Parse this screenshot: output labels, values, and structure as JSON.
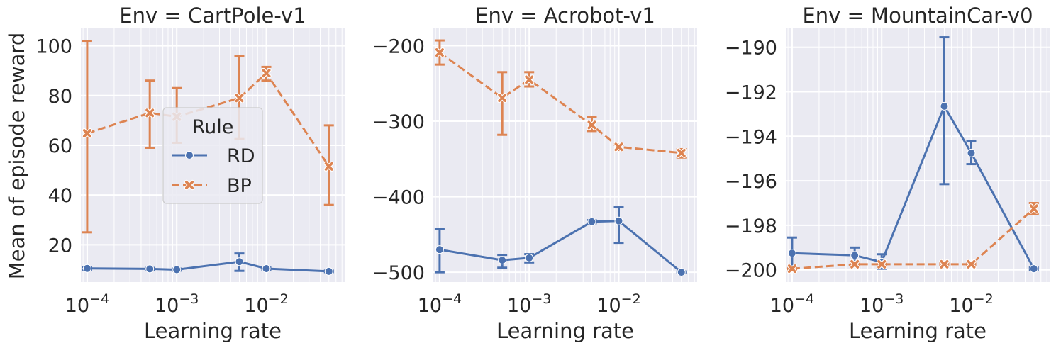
{
  "ylabel_shared": "Mean of episode reward",
  "legend": {
    "title": "Rule",
    "entries": [
      "RD",
      "BP"
    ]
  },
  "colors": {
    "RD": "#4c72b0",
    "BP": "#dd8452",
    "panel_bg": "#eaeaf2",
    "grid": "#ffffff",
    "text": "#262626"
  },
  "chart_data": [
    {
      "type": "line",
      "title": "Env = CartPole-v1",
      "xlabel": "Learning rate",
      "ylabel": "Mean of episode reward",
      "xscale": "log",
      "xlim": [
        8.5e-05,
        0.075
      ],
      "ylim": [
        5,
        107
      ],
      "x_ticks": [
        0.0001,
        0.001,
        0.01
      ],
      "x_tick_labels": [
        "10^-4",
        "10^-3",
        "10^-2"
      ],
      "y_ticks": [
        20,
        40,
        60,
        80,
        100
      ],
      "y_tick_labels": [
        "20",
        "40",
        "60",
        "80",
        "100"
      ],
      "grid": true,
      "legend_position": "center",
      "series": [
        {
          "name": "RD",
          "marker": "circle",
          "linestyle": "solid",
          "x": [
            0.0001,
            0.0005,
            0.001,
            0.005,
            0.01,
            0.05
          ],
          "y": [
            10.5,
            10.3,
            10.0,
            13.2,
            10.4,
            9.3
          ],
          "err_low": [
            10.0,
            9.9,
            9.6,
            9.5,
            10.0,
            9.0
          ],
          "err_high": [
            11.0,
            10.7,
            10.4,
            16.5,
            10.8,
            9.6
          ]
        },
        {
          "name": "BP",
          "marker": "x",
          "linestyle": "dashed",
          "x": [
            0.0001,
            0.0005,
            0.001,
            0.005,
            0.01,
            0.05
          ],
          "y": [
            64.8,
            73.0,
            71.5,
            79.0,
            89.0,
            51.5
          ],
          "err_low": [
            25.0,
            59.0,
            61.0,
            62.5,
            86.0,
            36.0
          ],
          "err_high": [
            102.0,
            86.0,
            83.0,
            96.0,
            91.5,
            68.0
          ]
        }
      ]
    },
    {
      "type": "line",
      "title": "Env = Acrobot-v1",
      "xlabel": "Learning rate",
      "ylabel": "",
      "xscale": "log",
      "xlim": [
        8.5e-05,
        0.075
      ],
      "ylim": [
        -513,
        -177
      ],
      "x_ticks": [
        0.0001,
        0.001,
        0.01
      ],
      "x_tick_labels": [
        "10^-4",
        "10^-3",
        "10^-2"
      ],
      "y_ticks": [
        -500,
        -400,
        -300,
        -200
      ],
      "y_tick_labels": [
        "−500",
        "−400",
        "−300",
        "−200"
      ],
      "grid": true,
      "series": [
        {
          "name": "RD",
          "marker": "circle",
          "linestyle": "solid",
          "x": [
            0.0001,
            0.0005,
            0.001,
            0.005,
            0.01,
            0.05
          ],
          "y": [
            -470,
            -484,
            -481,
            -433,
            -432,
            -500
          ],
          "err_low": [
            -500,
            -494,
            -487,
            -435,
            -461,
            -501
          ],
          "err_high": [
            -443,
            -477,
            -476,
            -431,
            -414,
            -499
          ]
        },
        {
          "name": "BP",
          "marker": "x",
          "linestyle": "dashed",
          "x": [
            0.0001,
            0.0005,
            0.001,
            0.005,
            0.01,
            0.05
          ],
          "y": [
            -209,
            -269,
            -245,
            -305,
            -334,
            -342
          ],
          "err_low": [
            -225,
            -318,
            -254,
            -313,
            -338,
            -348
          ],
          "err_high": [
            -193,
            -235,
            -235,
            -294,
            -331,
            -337
          ]
        }
      ]
    },
    {
      "type": "line",
      "title": "Env = MountainCar-v0",
      "xlabel": "Learning rate",
      "ylabel": "",
      "xscale": "log",
      "xlim": [
        8.5e-05,
        0.075
      ],
      "ylim": [
        -200.55,
        -189.15
      ],
      "x_ticks": [
        0.0001,
        0.001,
        0.01
      ],
      "x_tick_labels": [
        "10^-4",
        "10^-3",
        "10^-2"
      ],
      "y_ticks": [
        -200,
        -198,
        -196,
        -194,
        -192,
        -190
      ],
      "y_tick_labels": [
        "−200",
        "−198",
        "−196",
        "−194",
        "−192",
        "−190"
      ],
      "grid": true,
      "series": [
        {
          "name": "RD",
          "marker": "circle",
          "linestyle": "solid",
          "x": [
            0.0001,
            0.0005,
            0.001,
            0.005,
            0.01,
            0.05
          ],
          "y": [
            -199.25,
            -199.35,
            -199.65,
            -192.65,
            -194.75,
            -199.95
          ],
          "err_low": [
            -199.95,
            -199.7,
            -199.95,
            -196.15,
            -195.25,
            -200.0
          ],
          "err_high": [
            -198.55,
            -199.0,
            -199.3,
            -189.55,
            -194.2,
            -199.9
          ]
        },
        {
          "name": "BP",
          "marker": "x",
          "linestyle": "dashed",
          "x": [
            0.0001,
            0.0005,
            0.001,
            0.005,
            0.01,
            0.05
          ],
          "y": [
            -199.95,
            -199.75,
            -199.75,
            -199.75,
            -199.75,
            -197.25
          ],
          "err_low": [
            -200.0,
            -199.8,
            -199.8,
            -199.8,
            -199.8,
            -197.5
          ],
          "err_high": [
            -199.9,
            -199.7,
            -199.7,
            -199.7,
            -199.7,
            -197.0
          ]
        }
      ]
    }
  ]
}
